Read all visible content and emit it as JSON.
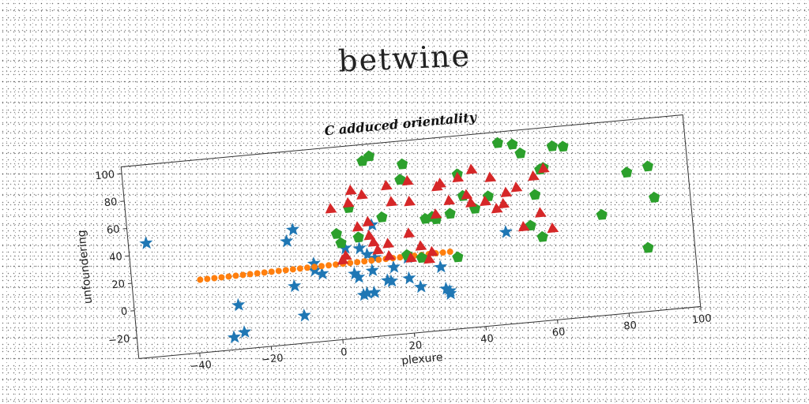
{
  "figure_title": "betwine",
  "chart_data": {
    "type": "scatter",
    "title": "C adduced orientality",
    "xlabel": "plexure",
    "ylabel": "unfoundering",
    "xlim": [
      -57,
      100
    ],
    "ylim": [
      -35,
      105
    ],
    "xticks": [
      -40,
      -20,
      0,
      20,
      40,
      60,
      80,
      100
    ],
    "yticks": [
      -20,
      0,
      20,
      40,
      60,
      80,
      100
    ],
    "grid": false,
    "series": [
      {
        "color": "#1f77b4",
        "marker": "star",
        "x": [
          -52,
          -30,
          -27,
          -28,
          -13,
          -11,
          -10,
          -12,
          -6,
          -6,
          -4,
          3,
          5,
          6,
          7,
          8,
          9,
          10,
          10,
          11,
          14,
          15,
          16,
          20,
          20,
          23,
          29,
          30,
          31,
          31,
          48,
          7,
          11
        ],
        "y": [
          48,
          -26,
          -23,
          -3,
          40,
          48,
          -15,
          7,
          22,
          17,
          14,
          31,
          12,
          9,
          -4,
          -3,
          25,
          13,
          -3,
          22,
          5,
          4,
          14,
          5,
          20,
          -2,
          11,
          -5,
          -7,
          -9,
          32,
          30,
          46
        ]
      },
      {
        "color": "#ff7f0e",
        "marker": "circle",
        "x": [
          -38,
          -36,
          -34,
          -32,
          -30,
          -28,
          -26,
          -24,
          -22,
          -20,
          -18,
          -16,
          -14,
          -12,
          -10,
          -8,
          -6,
          -4,
          -2,
          0,
          2,
          4,
          6,
          8,
          10,
          12,
          14,
          16,
          18,
          20,
          22,
          24,
          26,
          28,
          30,
          32
        ],
        "y": [
          18.0,
          18.1,
          18.2,
          18.3,
          18.4,
          18.5,
          18.6,
          18.7,
          18.8,
          18.9,
          19.0,
          19.1,
          19.2,
          19.3,
          19.4,
          19.5,
          19.6,
          19.7,
          19.8,
          19.9,
          20.0,
          20.1,
          20.2,
          20.3,
          20.4,
          20.5,
          20.6,
          20.7,
          20.8,
          20.9,
          21.0,
          21.1,
          21.2,
          21.3,
          21.4,
          21.5
        ]
      },
      {
        "color": "#2ca02c",
        "marker": "pentagon",
        "x": [
          1,
          2,
          5,
          7,
          10,
          12,
          14,
          20,
          20,
          21,
          24,
          26,
          28,
          29,
          33,
          34,
          36,
          37,
          40,
          44,
          48,
          52,
          54,
          55,
          57,
          58,
          59,
          60,
          63,
          66,
          75,
          83,
          87,
          89,
          90
        ],
        "y": [
          42,
          35,
          60,
          38,
          93,
          96,
          51,
          22,
          77,
          88,
          19,
          47,
          48,
          46,
          49,
          17,
          77,
          61,
          51,
          59,
          97,
          95,
          88,
          35,
          57,
          26,
          75,
          76,
          91,
          90,
          38,
          67,
          11,
          70,
          47
        ]
      },
      {
        "color": "#d62728",
        "marker": "triangle",
        "x": [
          0,
          2,
          3,
          5,
          6,
          7,
          9,
          10,
          10,
          11,
          12,
          15,
          15,
          16,
          17,
          21,
          21,
          22,
          22,
          24,
          26,
          27,
          29,
          30,
          31,
          33,
          36,
          38,
          39,
          40,
          43,
          45,
          46,
          48,
          49,
          52,
          53,
          57,
          58,
          60,
          61
        ],
        "y": [
          60,
          22,
          25,
          63,
          72,
          45,
          68,
          48,
          38,
          33,
          27,
          22,
          31,
          73,
          61,
          19,
          37,
          75,
          60,
          27,
          17,
          22,
          49,
          69,
          71,
          58,
          74,
          61,
          55,
          79,
          55,
          72,
          49,
          52,
          60,
          63,
          34,
          70,
          43,
          75,
          31
        ]
      }
    ]
  }
}
